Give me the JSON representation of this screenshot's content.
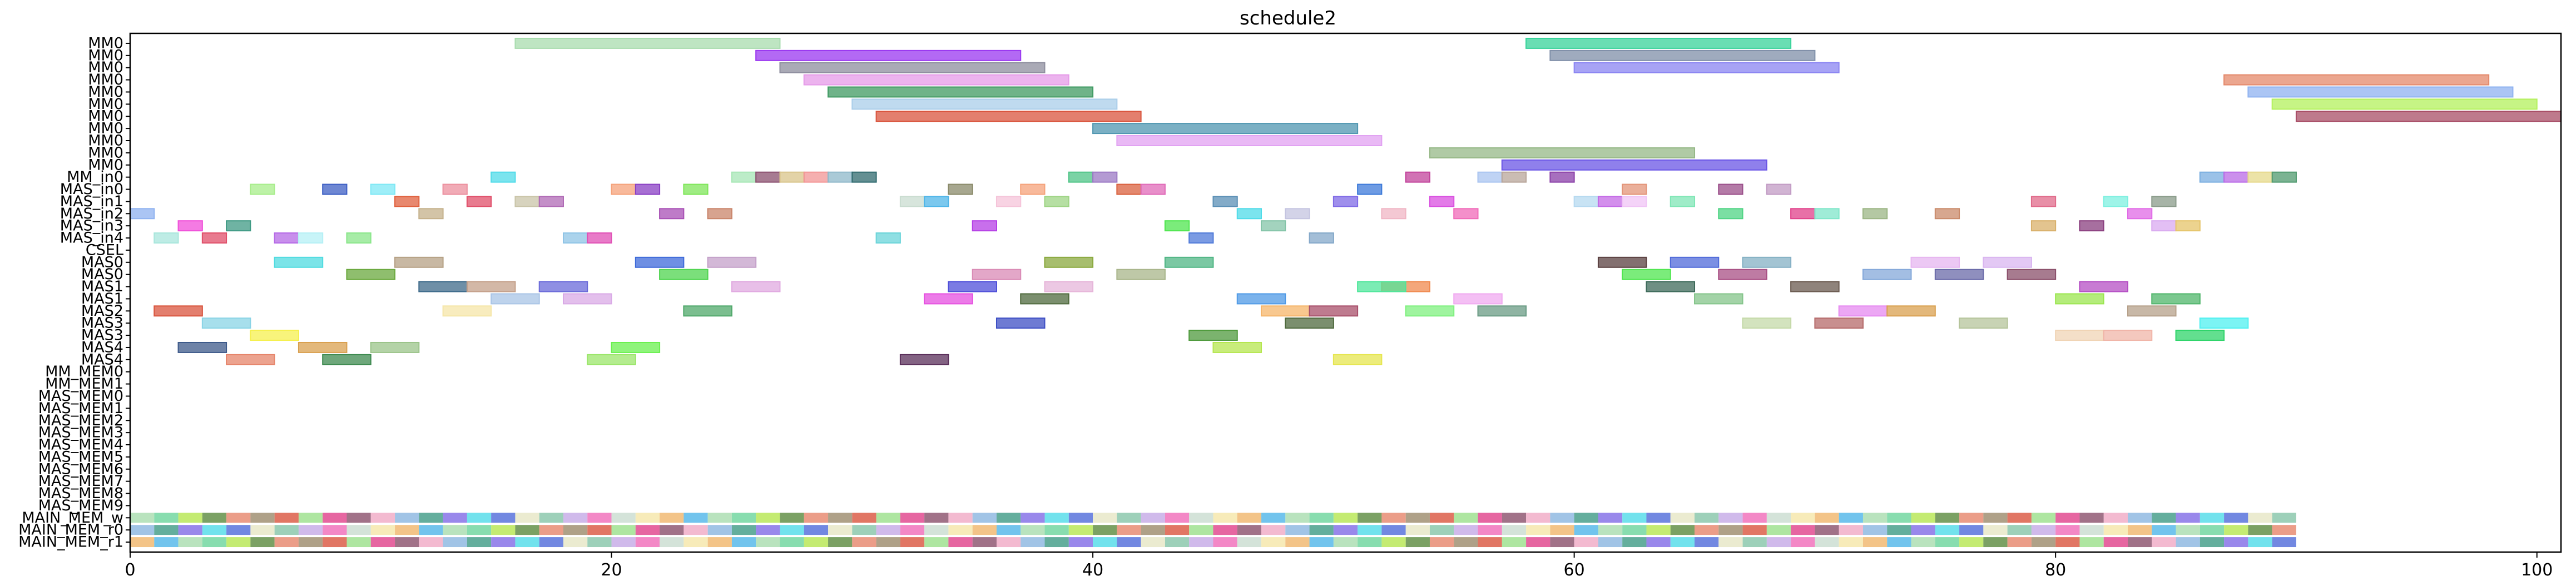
{
  "chart_data": {
    "type": "gantt",
    "title": "schedule2",
    "xlabel": "",
    "ylabel": "",
    "xlim": [
      0,
      101
    ],
    "x_ticks": [
      0,
      20,
      40,
      60,
      80,
      100
    ],
    "grid": false,
    "legend": "none",
    "rows": [
      "MM0",
      "MM0",
      "MM0",
      "MM0",
      "MM0",
      "MM0",
      "MM0",
      "MM0",
      "MM0",
      "MM0",
      "MM0",
      "MM_in0",
      "MAS_in0",
      "MAS_in1",
      "MAS_in2",
      "MAS_in3",
      "MAS_in4",
      "CSEL",
      "MAS0",
      "MAS0",
      "MAS1",
      "MAS1",
      "MAS2",
      "MAS3",
      "MAS3",
      "MAS4",
      "MAS4",
      "MM_MEM0",
      "MM_MEM1",
      "MAS_MEM0",
      "MAS_MEM1",
      "MAS_MEM2",
      "MAS_MEM3",
      "MAS_MEM4",
      "MAS_MEM5",
      "MAS_MEM6",
      "MAS_MEM7",
      "MAS_MEM8",
      "MAS_MEM9",
      "MAIN_MEM_w",
      "MAIN_MEM_r0",
      "MAIN_MEM_r1"
    ],
    "tasks": [
      {
        "row": 0,
        "start": 16,
        "end": 27,
        "color": "#a8dcae"
      },
      {
        "row": 0,
        "start": 58,
        "end": 69,
        "color": "#37d39a"
      },
      {
        "row": 1,
        "start": 26,
        "end": 37,
        "color": "#9a37f0"
      },
      {
        "row": 1,
        "start": 59,
        "end": 70,
        "color": "#7f8fa8"
      },
      {
        "row": 2,
        "start": 27,
        "end": 38,
        "color": "#8e8e9e"
      },
      {
        "row": 2,
        "start": 60,
        "end": 71,
        "color": "#8a84f2"
      },
      {
        "row": 3,
        "start": 28,
        "end": 39,
        "color": "#e59ae8"
      },
      {
        "row": 3,
        "start": 87,
        "end": 98,
        "color": "#e4886a"
      },
      {
        "row": 4,
        "start": 29,
        "end": 40,
        "color": "#3f9a62"
      },
      {
        "row": 4,
        "start": 88,
        "end": 99,
        "color": "#8fb2f0"
      },
      {
        "row": 5,
        "start": 30,
        "end": 41,
        "color": "#a9cde9"
      },
      {
        "row": 5,
        "start": 89,
        "end": 100,
        "color": "#b3f05c"
      },
      {
        "row": 6,
        "start": 31,
        "end": 42,
        "color": "#d9543d"
      },
      {
        "row": 6,
        "start": 90,
        "end": 101,
        "color": "#a84d66"
      },
      {
        "row": 7,
        "start": 40,
        "end": 51,
        "color": "#4f96b0"
      },
      {
        "row": 8,
        "start": 41,
        "end": 52,
        "color": "#e1a1f2"
      },
      {
        "row": 9,
        "start": 54,
        "end": 65,
        "color": "#96b887"
      },
      {
        "row": 10,
        "start": 57,
        "end": 68,
        "color": "#6a55e6"
      },
      {
        "row": 11,
        "start": 15,
        "end": 16,
        "color": "#4fdbe8"
      },
      {
        "row": 11,
        "start": 25,
        "end": 26,
        "color": "#a6e6b5"
      },
      {
        "row": 11,
        "start": 26,
        "end": 27,
        "color": "#8a4f6e"
      },
      {
        "row": 11,
        "start": 27,
        "end": 28,
        "color": "#d9c48a"
      },
      {
        "row": 11,
        "start": 28,
        "end": 29,
        "color": "#f29494"
      },
      {
        "row": 11,
        "start": 29,
        "end": 30,
        "color": "#8eb8c9"
      },
      {
        "row": 11,
        "start": 30,
        "end": 31,
        "color": "#2f6a6e"
      },
      {
        "row": 11,
        "start": 39,
        "end": 40,
        "color": "#4fc487"
      },
      {
        "row": 11,
        "start": 40,
        "end": 41,
        "color": "#9b78c4"
      },
      {
        "row": 11,
        "start": 53,
        "end": 54,
        "color": "#c2439b"
      },
      {
        "row": 11,
        "start": 56,
        "end": 57,
        "color": "#a9c4f0"
      },
      {
        "row": 11,
        "start": 57,
        "end": 58,
        "color": "#b8a59a"
      },
      {
        "row": 11,
        "start": 59,
        "end": 60,
        "color": "#8a3fa8"
      },
      {
        "row": 11,
        "start": 86,
        "end": 87,
        "color": "#79aee0"
      },
      {
        "row": 11,
        "start": 87,
        "end": 88,
        "color": "#b96ae6"
      },
      {
        "row": 11,
        "start": 88,
        "end": 89,
        "color": "#e6d98a"
      },
      {
        "row": 11,
        "start": 89,
        "end": 90,
        "color": "#4f9a6e"
      },
      {
        "row": 12,
        "start": 5,
        "end": 6,
        "color": "#a7ed8a"
      },
      {
        "row": 12,
        "start": 8,
        "end": 9,
        "color": "#3d5fc4"
      },
      {
        "row": 12,
        "start": 10,
        "end": 11,
        "color": "#7ee8f5"
      },
      {
        "row": 12,
        "start": 13,
        "end": 14,
        "color": "#ec8f9e"
      },
      {
        "row": 12,
        "start": 20,
        "end": 21,
        "color": "#f5a27a"
      },
      {
        "row": 12,
        "start": 21,
        "end": 22,
        "color": "#8a3fc4"
      },
      {
        "row": 12,
        "start": 23,
        "end": 24,
        "color": "#7fe65a"
      },
      {
        "row": 12,
        "start": 34,
        "end": 35,
        "color": "#8a8a6a"
      },
      {
        "row": 12,
        "start": 37,
        "end": 38,
        "color": "#f5a27a"
      },
      {
        "row": 12,
        "start": 41,
        "end": 42,
        "color": "#d9603d"
      },
      {
        "row": 12,
        "start": 42,
        "end": 43,
        "color": "#e06ab8"
      },
      {
        "row": 12,
        "start": 51,
        "end": 52,
        "color": "#3d7ad9"
      },
      {
        "row": 12,
        "start": 62,
        "end": 63,
        "color": "#e39478"
      },
      {
        "row": 12,
        "start": 66,
        "end": 67,
        "color": "#9b4f8a"
      },
      {
        "row": 12,
        "start": 68,
        "end": 69,
        "color": "#c29bc4"
      },
      {
        "row": 13,
        "start": 11,
        "end": 12,
        "color": "#e0603d"
      },
      {
        "row": 13,
        "start": 14,
        "end": 15,
        "color": "#e04f6a"
      },
      {
        "row": 13,
        "start": 16,
        "end": 17,
        "color": "#c9c4a8"
      },
      {
        "row": 13,
        "start": 17,
        "end": 18,
        "color": "#b06ab5"
      },
      {
        "row": 13,
        "start": 32,
        "end": 33,
        "color": "#c9dcd0"
      },
      {
        "row": 13,
        "start": 33,
        "end": 34,
        "color": "#4fb5e8"
      },
      {
        "row": 13,
        "start": 36,
        "end": 37,
        "color": "#f5c4d9"
      },
      {
        "row": 13,
        "start": 38,
        "end": 39,
        "color": "#9ed484"
      },
      {
        "row": 13,
        "start": 45,
        "end": 46,
        "color": "#5a8fb5"
      },
      {
        "row": 13,
        "start": 50,
        "end": 51,
        "color": "#7f6ae6"
      },
      {
        "row": 13,
        "start": 54,
        "end": 55,
        "color": "#d94fe0"
      },
      {
        "row": 13,
        "start": 60,
        "end": 61,
        "color": "#b5d9f0"
      },
      {
        "row": 13,
        "start": 61,
        "end": 62,
        "color": "#c46ae6"
      },
      {
        "row": 13,
        "start": 62,
        "end": 63,
        "color": "#f0c4f5"
      },
      {
        "row": 13,
        "start": 64,
        "end": 65,
        "color": "#7fe6b5"
      },
      {
        "row": 13,
        "start": 79,
        "end": 80,
        "color": "#e06a8a"
      },
      {
        "row": 13,
        "start": 82,
        "end": 83,
        "color": "#7ef0e0"
      },
      {
        "row": 13,
        "start": 84,
        "end": 85,
        "color": "#8a9b8a"
      },
      {
        "row": 14,
        "start": 0,
        "end": 1,
        "color": "#8fb2f0"
      },
      {
        "row": 14,
        "start": 12,
        "end": 13,
        "color": "#c4b08a"
      },
      {
        "row": 14,
        "start": 22,
        "end": 23,
        "color": "#a84fb5"
      },
      {
        "row": 14,
        "start": 24,
        "end": 25,
        "color": "#c9846a"
      },
      {
        "row": 14,
        "start": 46,
        "end": 47,
        "color": "#4fdbe8"
      },
      {
        "row": 14,
        "start": 48,
        "end": 49,
        "color": "#c4c4e0"
      },
      {
        "row": 14,
        "start": 52,
        "end": 53,
        "color": "#f0b5c4"
      },
      {
        "row": 14,
        "start": 55,
        "end": 56,
        "color": "#f06ab8"
      },
      {
        "row": 14,
        "start": 66,
        "end": 67,
        "color": "#4fd484"
      },
      {
        "row": 14,
        "start": 69,
        "end": 70,
        "color": "#e0408a"
      },
      {
        "row": 14,
        "start": 70,
        "end": 71,
        "color": "#7fe6c9"
      },
      {
        "row": 14,
        "start": 72,
        "end": 73,
        "color": "#9bb584"
      },
      {
        "row": 14,
        "start": 75,
        "end": 76,
        "color": "#c98a6a"
      },
      {
        "row": 14,
        "start": 83,
        "end": 84,
        "color": "#e06ae6"
      },
      {
        "row": 15,
        "start": 2,
        "end": 3,
        "color": "#f04fd9"
      },
      {
        "row": 15,
        "start": 4,
        "end": 5,
        "color": "#3f9a84"
      },
      {
        "row": 15,
        "start": 35,
        "end": 36,
        "color": "#b53fe6"
      },
      {
        "row": 15,
        "start": 43,
        "end": 44,
        "color": "#4fe64f"
      },
      {
        "row": 15,
        "start": 47,
        "end": 48,
        "color": "#84c4a8"
      },
      {
        "row": 15,
        "start": 79,
        "end": 80,
        "color": "#d9b06a"
      },
      {
        "row": 15,
        "start": 81,
        "end": 82,
        "color": "#8a3f7f"
      },
      {
        "row": 15,
        "start": 84,
        "end": 85,
        "color": "#d9a9f0"
      },
      {
        "row": 15,
        "start": 85,
        "end": 86,
        "color": "#e6c46a"
      },
      {
        "row": 16,
        "start": 1,
        "end": 2,
        "color": "#a8e6dc"
      },
      {
        "row": 16,
        "start": 3,
        "end": 4,
        "color": "#e04f6a"
      },
      {
        "row": 16,
        "start": 6,
        "end": 7,
        "color": "#b56ae6"
      },
      {
        "row": 16,
        "start": 7,
        "end": 8,
        "color": "#b5f0f5"
      },
      {
        "row": 16,
        "start": 9,
        "end": 10,
        "color": "#8ae68a"
      },
      {
        "row": 16,
        "start": 18,
        "end": 19,
        "color": "#8fc4e6"
      },
      {
        "row": 16,
        "start": 19,
        "end": 20,
        "color": "#e04fb5"
      },
      {
        "row": 16,
        "start": 31,
        "end": 32,
        "color": "#6ad4d9"
      },
      {
        "row": 16,
        "start": 44,
        "end": 45,
        "color": "#4f7ad9"
      },
      {
        "row": 16,
        "start": 49,
        "end": 50,
        "color": "#84a8c9"
      },
      {
        "row": 18,
        "start": 6,
        "end": 8,
        "color": "#4fdbe0"
      },
      {
        "row": 18,
        "start": 11,
        "end": 13,
        "color": "#b5a084"
      },
      {
        "row": 18,
        "start": 21,
        "end": 23,
        "color": "#3d6ad9"
      },
      {
        "row": 18,
        "start": 24,
        "end": 26,
        "color": "#c4a0c9"
      },
      {
        "row": 18,
        "start": 38,
        "end": 40,
        "color": "#8aa83d"
      },
      {
        "row": 18,
        "start": 43,
        "end": 45,
        "color": "#4fb584"
      },
      {
        "row": 18,
        "start": 61,
        "end": 63,
        "color": "#5a4040"
      },
      {
        "row": 18,
        "start": 64,
        "end": 66,
        "color": "#4f6ad9"
      },
      {
        "row": 18,
        "start": 67,
        "end": 69,
        "color": "#84b0c4"
      },
      {
        "row": 18,
        "start": 74,
        "end": 76,
        "color": "#e6b5f0"
      },
      {
        "row": 18,
        "start": 77,
        "end": 79,
        "color": "#d9b5f0"
      },
      {
        "row": 19,
        "start": 9,
        "end": 11,
        "color": "#6aa83d"
      },
      {
        "row": 19,
        "start": 22,
        "end": 24,
        "color": "#4fd44f"
      },
      {
        "row": 19,
        "start": 35,
        "end": 37,
        "color": "#d98ab5"
      },
      {
        "row": 19,
        "start": 41,
        "end": 43,
        "color": "#a8b58a"
      },
      {
        "row": 19,
        "start": 62,
        "end": 64,
        "color": "#4fe64f"
      },
      {
        "row": 19,
        "start": 66,
        "end": 68,
        "color": "#a84f84"
      },
      {
        "row": 19,
        "start": 72,
        "end": 74,
        "color": "#84a8d9"
      },
      {
        "row": 19,
        "start": 75,
        "end": 77,
        "color": "#6a6aa8"
      },
      {
        "row": 19,
        "start": 78,
        "end": 80,
        "color": "#8a4f6a"
      },
      {
        "row": 20,
        "start": 12,
        "end": 14,
        "color": "#3d6a8a"
      },
      {
        "row": 20,
        "start": 14,
        "end": 16,
        "color": "#c4a08a"
      },
      {
        "row": 20,
        "start": 17,
        "end": 19,
        "color": "#6a6ad9"
      },
      {
        "row": 20,
        "start": 25,
        "end": 27,
        "color": "#e0a9e0"
      },
      {
        "row": 20,
        "start": 34,
        "end": 36,
        "color": "#4f4fd9"
      },
      {
        "row": 20,
        "start": 38,
        "end": 40,
        "color": "#e6b5d9"
      },
      {
        "row": 20,
        "start": 52,
        "end": 54,
        "color": "#f08a4f"
      },
      {
        "row": 20,
        "start": 51,
        "end": 53,
        "color": "#4fe69b"
      },
      {
        "row": 20,
        "start": 63,
        "end": 65,
        "color": "#3d6a5a"
      },
      {
        "row": 20,
        "start": 69,
        "end": 71,
        "color": "#6a5a4f"
      },
      {
        "row": 20,
        "start": 81,
        "end": 83,
        "color": "#b54fc4"
      },
      {
        "row": 21,
        "start": 15,
        "end": 17,
        "color": "#a8c4e6"
      },
      {
        "row": 21,
        "start": 18,
        "end": 20,
        "color": "#d9a9e6"
      },
      {
        "row": 21,
        "start": 33,
        "end": 35,
        "color": "#e64fe0"
      },
      {
        "row": 21,
        "start": 37,
        "end": 39,
        "color": "#4f6a3d"
      },
      {
        "row": 21,
        "start": 46,
        "end": 48,
        "color": "#4f9ae6"
      },
      {
        "row": 21,
        "start": 55,
        "end": 57,
        "color": "#f0a9f0"
      },
      {
        "row": 21,
        "start": 65,
        "end": 67,
        "color": "#84c48a"
      },
      {
        "row": 21,
        "start": 80,
        "end": 82,
        "color": "#9be64f"
      },
      {
        "row": 21,
        "start": 84,
        "end": 86,
        "color": "#4fb56a"
      },
      {
        "row": 22,
        "start": 1,
        "end": 3,
        "color": "#d9543d"
      },
      {
        "row": 22,
        "start": 13,
        "end": 15,
        "color": "#f5e6a8"
      },
      {
        "row": 22,
        "start": 23,
        "end": 25,
        "color": "#4fa86a"
      },
      {
        "row": 22,
        "start": 47,
        "end": 49,
        "color": "#f5b56a"
      },
      {
        "row": 22,
        "start": 49,
        "end": 51,
        "color": "#a84f6a"
      },
      {
        "row": 22,
        "start": 53,
        "end": 55,
        "color": "#7ff07f"
      },
      {
        "row": 22,
        "start": 56,
        "end": 58,
        "color": "#6a9b84"
      },
      {
        "row": 22,
        "start": 71,
        "end": 73,
        "color": "#e68af0"
      },
      {
        "row": 22,
        "start": 73,
        "end": 75,
        "color": "#d9a04f"
      },
      {
        "row": 22,
        "start": 83,
        "end": 85,
        "color": "#b5a08a"
      },
      {
        "row": 23,
        "start": 3,
        "end": 5,
        "color": "#8ad4e6"
      },
      {
        "row": 23,
        "start": 36,
        "end": 38,
        "color": "#3d4fc4"
      },
      {
        "row": 23,
        "start": 48,
        "end": 50,
        "color": "#4f6a3d"
      },
      {
        "row": 23,
        "start": 67,
        "end": 69,
        "color": "#c4d9a8"
      },
      {
        "row": 23,
        "start": 70,
        "end": 72,
        "color": "#b56a6a"
      },
      {
        "row": 23,
        "start": 76,
        "end": 78,
        "color": "#b5c49b"
      },
      {
        "row": 23,
        "start": 86,
        "end": 88,
        "color": "#4ff0f0"
      },
      {
        "row": 24,
        "start": 5,
        "end": 7,
        "color": "#f5f04f"
      },
      {
        "row": 24,
        "start": 44,
        "end": 46,
        "color": "#4f9a3d"
      },
      {
        "row": 24,
        "start": 80,
        "end": 82,
        "color": "#f0d4b5"
      },
      {
        "row": 24,
        "start": 82,
        "end": 84,
        "color": "#f0b5a8"
      },
      {
        "row": 24,
        "start": 85,
        "end": 87,
        "color": "#2fd46a"
      },
      {
        "row": 25,
        "start": 2,
        "end": 4,
        "color": "#3d5a8a"
      },
      {
        "row": 25,
        "start": 7,
        "end": 9,
        "color": "#d9a04f"
      },
      {
        "row": 25,
        "start": 10,
        "end": 12,
        "color": "#9bc48a"
      },
      {
        "row": 25,
        "start": 20,
        "end": 22,
        "color": "#6af04f"
      },
      {
        "row": 25,
        "start": 45,
        "end": 47,
        "color": "#b5e64f"
      },
      {
        "row": 26,
        "start": 4,
        "end": 6,
        "color": "#e6846a"
      },
      {
        "row": 26,
        "start": 8,
        "end": 10,
        "color": "#3d8a4f"
      },
      {
        "row": 26,
        "start": 19,
        "end": 21,
        "color": "#9be66a"
      },
      {
        "row": 26,
        "start": 32,
        "end": 34,
        "color": "#5a2f5a"
      },
      {
        "row": 26,
        "start": 50,
        "end": 52,
        "color": "#e6e64f"
      }
    ],
    "main_mem_rows": [
      39,
      40,
      41
    ],
    "main_mem_range": [
      0,
      90
    ],
    "palette": [
      "#a8dcae",
      "#9ae08a",
      "#4fdbe8",
      "#f5e6a8",
      "#e6846a",
      "#8ab5e0",
      "#c4a9e6",
      "#6ad49b",
      "#e0408a",
      "#4f6ad9",
      "#f0b56a",
      "#9b8a6a",
      "#3d9a84",
      "#f06ab8",
      "#b5e64f",
      "#8a4f6a",
      "#e6e6c4",
      "#4fb5e8",
      "#d9543d",
      "#7f6ae6",
      "#c9dcd0",
      "#5a8a3d",
      "#f0a9c4",
      "#84c4a8"
    ]
  }
}
